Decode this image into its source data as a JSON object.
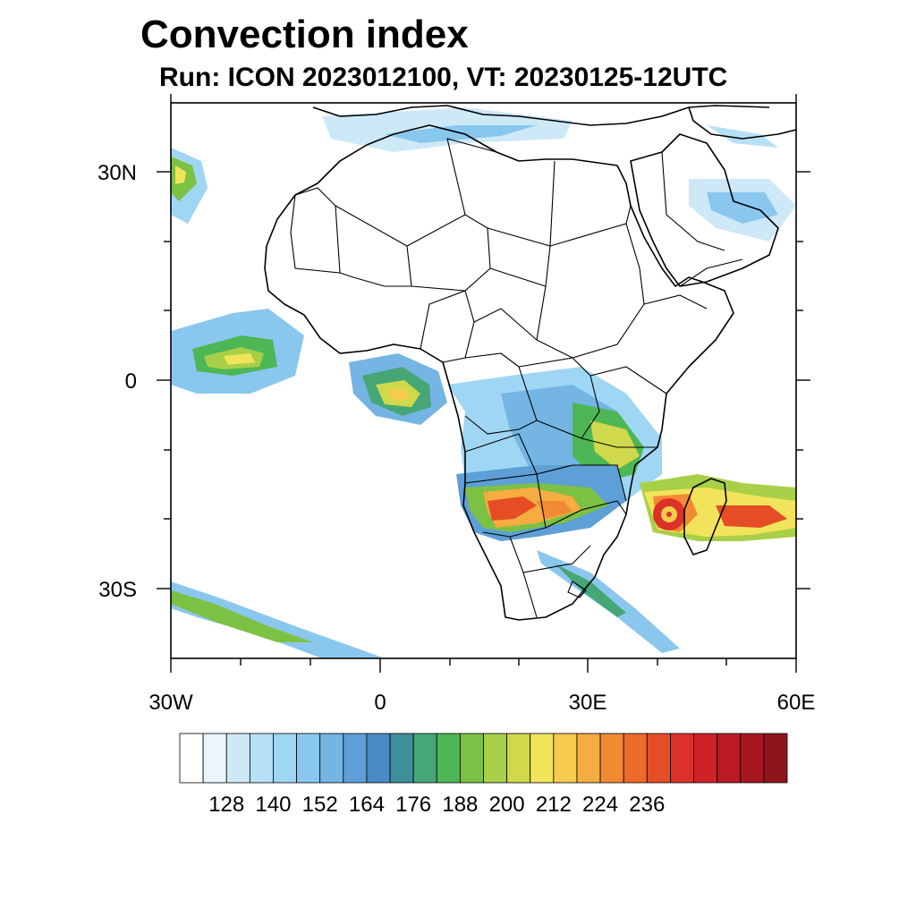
{
  "title": "Convection index",
  "subtitle": "Run: ICON 2023012100,  VT: 20230125-12UTC",
  "lat_labels": [
    "30N",
    "0",
    "30S"
  ],
  "lon_labels": [
    "30W",
    "0",
    "30E",
    "60E"
  ],
  "colorbar": {
    "labels": [
      "128",
      "140",
      "152",
      "164",
      "176",
      "188",
      "200",
      "212",
      "224",
      "236"
    ],
    "colors": [
      "#ffffff",
      "#eaf5fc",
      "#cde9f8",
      "#b6e0f6",
      "#9fd6f4",
      "#8ac7ee",
      "#74b5e4",
      "#5d9fd6",
      "#4a8bc6",
      "#3f8f9a",
      "#47a676",
      "#4db655",
      "#7cc143",
      "#a8cf48",
      "#cfd94b",
      "#f2e45a",
      "#f7cb4c",
      "#f5ac40",
      "#f18a33",
      "#ec6a2a",
      "#e44d26",
      "#dc3128",
      "#cf2128",
      "#bb1a24",
      "#a8171f",
      "#8f141b"
    ]
  },
  "map_features": {
    "coastline": "coastline",
    "borders": "country-borders",
    "cyclone": "cyclone-madagascar"
  }
}
